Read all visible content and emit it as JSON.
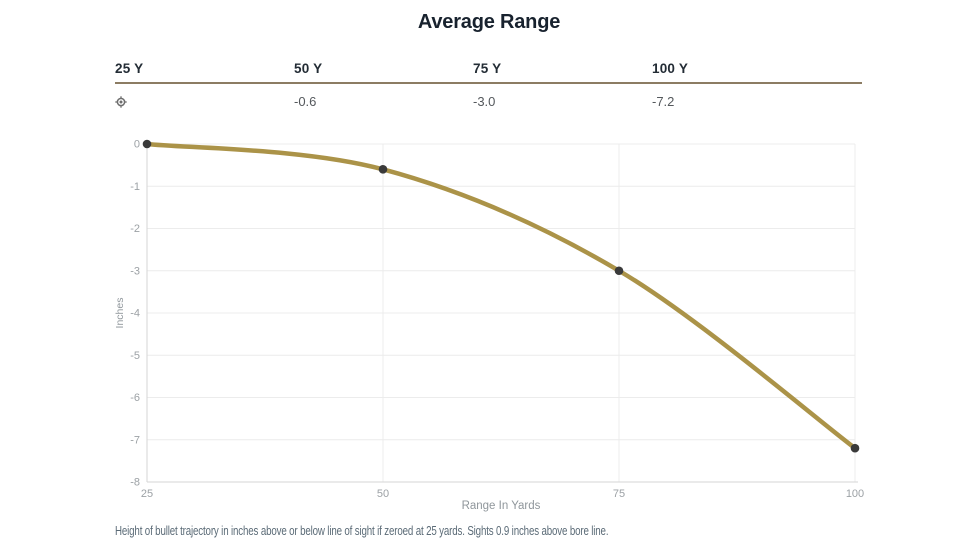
{
  "page": {
    "title": "Average Range"
  },
  "table": {
    "headers": [
      "25 Y",
      "50 Y",
      "75 Y",
      "100 Y"
    ],
    "values": [
      "",
      "-0.6",
      "-3.0",
      "-7.2"
    ],
    "zero_icon": "target-icon"
  },
  "chart_data": {
    "type": "line",
    "x": [
      25,
      50,
      75,
      100
    ],
    "series": [
      {
        "name": "Average Range",
        "values": [
          0,
          -0.6,
          -3.0,
          -7.2
        ]
      }
    ],
    "title": "Average Range",
    "xlabel": "Range In Yards",
    "ylabel": "Inches",
    "xticks": [
      25,
      50,
      75,
      100
    ],
    "yticks": [
      0,
      -1,
      -2,
      -3,
      -4,
      -5,
      -6,
      -7,
      -8
    ],
    "xlim": [
      25,
      100
    ],
    "ylim": [
      -8,
      0
    ],
    "grid": true,
    "legend_position": "none",
    "line_color": "#ab9348",
    "point_color": "#3a3a3a",
    "grid_color": "#ececec",
    "axis_color": "#d6d6d6",
    "tick_label_color": "#9ca1a5",
    "axis_title_color": "#8f969b"
  },
  "caption": "Height of bullet trajectory in inches above or below line of sight if zeroed at 25 yards. Sights 0.9 inches above bore line.",
  "colors": {
    "background": "#ffffff",
    "title_text": "#18222e",
    "header_text": "#232c35",
    "value_text": "#54585c",
    "divider": "#8c7c63",
    "caption_text": "#5b6b77",
    "icon": "#6e6e6e"
  }
}
